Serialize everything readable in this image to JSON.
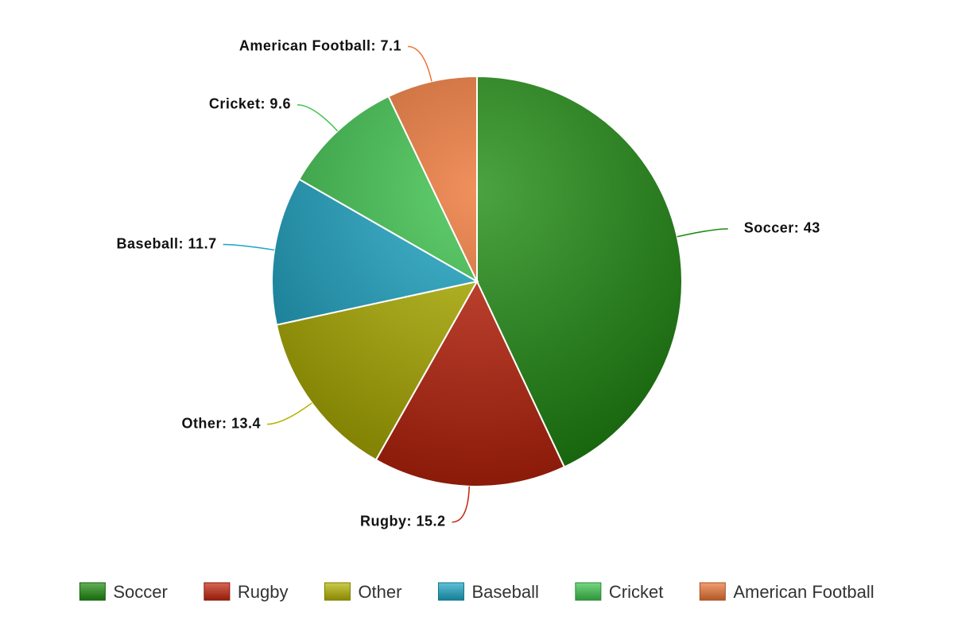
{
  "chart_data": {
    "type": "pie",
    "categories": [
      "Soccer",
      "Rugby",
      "Other",
      "Baseball",
      "Cricket",
      "American Football"
    ],
    "values": [
      43,
      15.2,
      13.4,
      11.7,
      9.6,
      7.1
    ],
    "value_labels": [
      "Soccer: 43",
      "Rugby: 15.2",
      "Other: 13.4",
      "Baseball: 11.7",
      "Cricket: 9.6",
      "American Football: 7.1"
    ],
    "colors": [
      "#1e8c10",
      "#c4240c",
      "#b4b400",
      "#1aa6c6",
      "#3cc44c",
      "#ec7434"
    ],
    "legend": "bottom"
  }
}
